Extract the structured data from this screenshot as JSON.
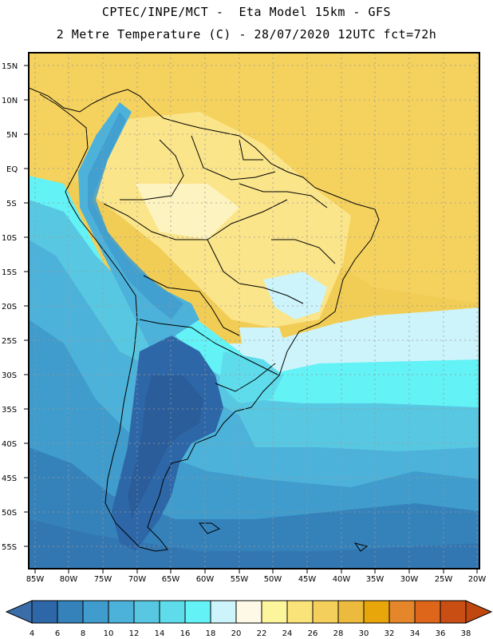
{
  "header": {
    "line1": "CPTEC/INPE/MCT -  Eta Model 15km - GFS",
    "line2": "2 Metre Temperature (C) - 28/07/2020 12UTC fct=72h"
  },
  "axes": {
    "lat_labels": [
      "15N",
      "10N",
      "5N",
      "EQ",
      "5S",
      "10S",
      "15S",
      "20S",
      "25S",
      "30S",
      "35S",
      "40S",
      "45S",
      "50S",
      "55S"
    ],
    "lon_labels": [
      "85W",
      "80W",
      "75W",
      "70W",
      "65W",
      "60W",
      "55W",
      "50W",
      "45W",
      "40W",
      "35W",
      "30W",
      "25W",
      "20W"
    ]
  },
  "colorbar": {
    "ticks": [
      "4",
      "6",
      "8",
      "10",
      "12",
      "14",
      "16",
      "18",
      "20",
      "22",
      "24",
      "26",
      "28",
      "30",
      "32",
      "34",
      "36",
      "38"
    ],
    "colors": [
      "#2e67a8",
      "#3582bb",
      "#3f9ccc",
      "#4db2da",
      "#58c8e2",
      "#5fdcec",
      "#63f2f6",
      "#cdf4fb",
      "#fdf9e6",
      "#fdf59c",
      "#fae47a",
      "#f5cf5c",
      "#ecba3c",
      "#e8a60a",
      "#e5862a",
      "#de661b",
      "#c84e14"
    ],
    "low_color": "#3b6ea8",
    "high_color": "#c0480e"
  }
}
